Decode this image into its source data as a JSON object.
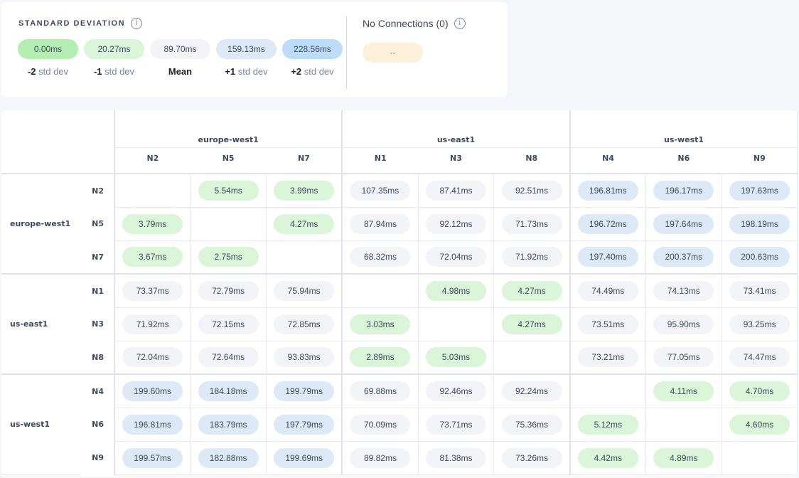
{
  "legend": {
    "title": "STANDARD DEVIATION",
    "info_icon": "info-icon",
    "items": [
      {
        "value": "0.00ms",
        "prefix": "-2",
        "suffix": " std dev",
        "color": "#b3eeb0"
      },
      {
        "value": "20.27ms",
        "prefix": "-1",
        "suffix": " std dev",
        "color": "#daf5d7"
      },
      {
        "value": "89.70ms",
        "prefix": "Mean",
        "suffix": "",
        "color": "#f3f4f8"
      },
      {
        "value": "159.13ms",
        "prefix": "+1",
        "suffix": " std dev",
        "color": "#dde9f6"
      },
      {
        "value": "228.56ms",
        "prefix": "+2",
        "suffix": " std dev",
        "color": "#bcdcfb"
      }
    ],
    "no_connections": {
      "title": "No Connections (0)",
      "value": "--",
      "color": "#fdf0da"
    }
  },
  "matrix": {
    "groups": [
      {
        "name": "europe-west1",
        "nodes": [
          "N2",
          "N5",
          "N7"
        ]
      },
      {
        "name": "us-east1",
        "nodes": [
          "N1",
          "N3",
          "N8"
        ]
      },
      {
        "name": "us-west1",
        "nodes": [
          "N4",
          "N6",
          "N9"
        ]
      }
    ],
    "rows": [
      [
        "",
        "5.54ms",
        "3.99ms",
        "107.35ms",
        "87.41ms",
        "92.51ms",
        "196.81ms",
        "196.17ms",
        "197.63ms"
      ],
      [
        "3.79ms",
        "",
        "4.27ms",
        "87.94ms",
        "92.12ms",
        "71.73ms",
        "196.72ms",
        "197.64ms",
        "198.19ms"
      ],
      [
        "3.67ms",
        "2.75ms",
        "",
        "68.32ms",
        "72.04ms",
        "71.92ms",
        "197.40ms",
        "200.37ms",
        "200.63ms"
      ],
      [
        "73.37ms",
        "72.79ms",
        "75.94ms",
        "",
        "4.98ms",
        "4.27ms",
        "74.49ms",
        "74.13ms",
        "73.41ms"
      ],
      [
        "71.92ms",
        "72.15ms",
        "72.85ms",
        "3.03ms",
        "",
        "4.27ms",
        "73.51ms",
        "95.90ms",
        "93.25ms"
      ],
      [
        "72.04ms",
        "72.64ms",
        "93.83ms",
        "2.89ms",
        "5.03ms",
        "",
        "73.21ms",
        "77.05ms",
        "74.47ms"
      ],
      [
        "199.60ms",
        "184.18ms",
        "199.79ms",
        "69.88ms",
        "92.46ms",
        "92.24ms",
        "",
        "4.11ms",
        "4.70ms"
      ],
      [
        "196.81ms",
        "183.79ms",
        "197.79ms",
        "70.09ms",
        "73.71ms",
        "75.36ms",
        "5.12ms",
        "",
        "4.60ms"
      ],
      [
        "199.57ms",
        "182.88ms",
        "199.69ms",
        "89.82ms",
        "81.38ms",
        "73.26ms",
        "4.42ms",
        "4.89ms",
        ""
      ]
    ]
  }
}
